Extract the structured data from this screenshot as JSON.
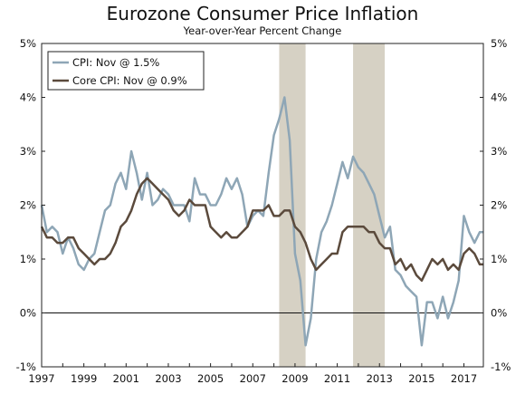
{
  "chart_data": {
    "type": "line",
    "title": "Eurozone Consumer Price Inflation",
    "subtitle": "Year-over-Year Percent Change",
    "xlim": [
      1997.0,
      2017.92
    ],
    "ylim": [
      -1,
      5
    ],
    "y_ticks": [
      -1,
      0,
      1,
      2,
      3,
      4,
      5
    ],
    "y_tick_labels": [
      "-1%",
      "0%",
      "1%",
      "2%",
      "3%",
      "4%",
      "5%"
    ],
    "x_ticks": [
      1997,
      1999,
      2001,
      2003,
      2005,
      2007,
      2009,
      2011,
      2013,
      2015,
      2017
    ],
    "x_tick_labels": [
      "1997",
      "1999",
      "2001",
      "2003",
      "2005",
      "2007",
      "2009",
      "2011",
      "2013",
      "2015",
      "2017"
    ],
    "recessions": [
      [
        2008.25,
        2009.5
      ],
      [
        2011.75,
        2013.25
      ]
    ],
    "recession_color": "#d6d1c4",
    "zero_line": true,
    "legend_position": "top-left",
    "series": [
      {
        "name": "CPI: Nov @ 1.5%",
        "color": "#8ea6b6",
        "points": [
          [
            1997.0,
            2.0
          ],
          [
            1997.25,
            1.5
          ],
          [
            1997.5,
            1.6
          ],
          [
            1997.75,
            1.5
          ],
          [
            1998.0,
            1.1
          ],
          [
            1998.25,
            1.4
          ],
          [
            1998.5,
            1.2
          ],
          [
            1998.75,
            0.9
          ],
          [
            1999.0,
            0.8
          ],
          [
            1999.25,
            1.0
          ],
          [
            1999.5,
            1.1
          ],
          [
            1999.75,
            1.5
          ],
          [
            2000.0,
            1.9
          ],
          [
            2000.25,
            2.0
          ],
          [
            2000.5,
            2.4
          ],
          [
            2000.75,
            2.6
          ],
          [
            2001.0,
            2.3
          ],
          [
            2001.25,
            3.0
          ],
          [
            2001.5,
            2.6
          ],
          [
            2001.75,
            2.1
          ],
          [
            2002.0,
            2.6
          ],
          [
            2002.25,
            2.0
          ],
          [
            2002.5,
            2.1
          ],
          [
            2002.75,
            2.3
          ],
          [
            2003.0,
            2.2
          ],
          [
            2003.25,
            2.0
          ],
          [
            2003.5,
            2.0
          ],
          [
            2003.75,
            2.0
          ],
          [
            2004.0,
            1.7
          ],
          [
            2004.25,
            2.5
          ],
          [
            2004.5,
            2.2
          ],
          [
            2004.75,
            2.2
          ],
          [
            2005.0,
            2.0
          ],
          [
            2005.25,
            2.0
          ],
          [
            2005.5,
            2.2
          ],
          [
            2005.75,
            2.5
          ],
          [
            2006.0,
            2.3
          ],
          [
            2006.25,
            2.5
          ],
          [
            2006.5,
            2.2
          ],
          [
            2006.75,
            1.6
          ],
          [
            2007.0,
            1.8
          ],
          [
            2007.25,
            1.9
          ],
          [
            2007.5,
            1.8
          ],
          [
            2007.75,
            2.6
          ],
          [
            2008.0,
            3.3
          ],
          [
            2008.25,
            3.6
          ],
          [
            2008.5,
            4.0
          ],
          [
            2008.75,
            3.2
          ],
          [
            2009.0,
            1.1
          ],
          [
            2009.25,
            0.6
          ],
          [
            2009.5,
            -0.6
          ],
          [
            2009.75,
            -0.1
          ],
          [
            2010.0,
            1.0
          ],
          [
            2010.25,
            1.5
          ],
          [
            2010.5,
            1.7
          ],
          [
            2010.75,
            2.0
          ],
          [
            2011.0,
            2.4
          ],
          [
            2011.25,
            2.8
          ],
          [
            2011.5,
            2.5
          ],
          [
            2011.75,
            2.9
          ],
          [
            2012.0,
            2.7
          ],
          [
            2012.25,
            2.6
          ],
          [
            2012.5,
            2.4
          ],
          [
            2012.75,
            2.2
          ],
          [
            2013.0,
            1.8
          ],
          [
            2013.25,
            1.4
          ],
          [
            2013.5,
            1.6
          ],
          [
            2013.75,
            0.8
          ],
          [
            2014.0,
            0.7
          ],
          [
            2014.25,
            0.5
          ],
          [
            2014.5,
            0.4
          ],
          [
            2014.75,
            0.3
          ],
          [
            2015.0,
            -0.6
          ],
          [
            2015.25,
            0.2
          ],
          [
            2015.5,
            0.2
          ],
          [
            2015.75,
            -0.1
          ],
          [
            2016.0,
            0.3
          ],
          [
            2016.25,
            -0.1
          ],
          [
            2016.5,
            0.2
          ],
          [
            2016.75,
            0.6
          ],
          [
            2017.0,
            1.8
          ],
          [
            2017.25,
            1.5
          ],
          [
            2017.5,
            1.3
          ],
          [
            2017.75,
            1.5
          ],
          [
            2017.92,
            1.5
          ]
        ]
      },
      {
        "name": "Core CPI: Nov @ 0.9%",
        "color": "#5b4a3c",
        "points": [
          [
            1997.0,
            1.6
          ],
          [
            1997.25,
            1.4
          ],
          [
            1997.5,
            1.4
          ],
          [
            1997.75,
            1.3
          ],
          [
            1998.0,
            1.3
          ],
          [
            1998.25,
            1.4
          ],
          [
            1998.5,
            1.4
          ],
          [
            1998.75,
            1.2
          ],
          [
            1999.0,
            1.1
          ],
          [
            1999.25,
            1.0
          ],
          [
            1999.5,
            0.9
          ],
          [
            1999.75,
            1.0
          ],
          [
            2000.0,
            1.0
          ],
          [
            2000.25,
            1.1
          ],
          [
            2000.5,
            1.3
          ],
          [
            2000.75,
            1.6
          ],
          [
            2001.0,
            1.7
          ],
          [
            2001.25,
            1.9
          ],
          [
            2001.5,
            2.2
          ],
          [
            2001.75,
            2.4
          ],
          [
            2002.0,
            2.5
          ],
          [
            2002.25,
            2.4
          ],
          [
            2002.5,
            2.3
          ],
          [
            2002.75,
            2.2
          ],
          [
            2003.0,
            2.1
          ],
          [
            2003.25,
            1.9
          ],
          [
            2003.5,
            1.8
          ],
          [
            2003.75,
            1.9
          ],
          [
            2004.0,
            2.1
          ],
          [
            2004.25,
            2.0
          ],
          [
            2004.5,
            2.0
          ],
          [
            2004.75,
            2.0
          ],
          [
            2005.0,
            1.6
          ],
          [
            2005.25,
            1.5
          ],
          [
            2005.5,
            1.4
          ],
          [
            2005.75,
            1.5
          ],
          [
            2006.0,
            1.4
          ],
          [
            2006.25,
            1.4
          ],
          [
            2006.5,
            1.5
          ],
          [
            2006.75,
            1.6
          ],
          [
            2007.0,
            1.9
          ],
          [
            2007.25,
            1.9
          ],
          [
            2007.5,
            1.9
          ],
          [
            2007.75,
            2.0
          ],
          [
            2008.0,
            1.8
          ],
          [
            2008.25,
            1.8
          ],
          [
            2008.5,
            1.9
          ],
          [
            2008.75,
            1.9
          ],
          [
            2009.0,
            1.6
          ],
          [
            2009.25,
            1.5
          ],
          [
            2009.5,
            1.3
          ],
          [
            2009.75,
            1.0
          ],
          [
            2010.0,
            0.8
          ],
          [
            2010.25,
            0.9
          ],
          [
            2010.5,
            1.0
          ],
          [
            2010.75,
            1.1
          ],
          [
            2011.0,
            1.1
          ],
          [
            2011.25,
            1.5
          ],
          [
            2011.5,
            1.6
          ],
          [
            2011.75,
            1.6
          ],
          [
            2012.0,
            1.6
          ],
          [
            2012.25,
            1.6
          ],
          [
            2012.5,
            1.5
          ],
          [
            2012.75,
            1.5
          ],
          [
            2013.0,
            1.3
          ],
          [
            2013.25,
            1.2
          ],
          [
            2013.5,
            1.2
          ],
          [
            2013.75,
            0.9
          ],
          [
            2014.0,
            1.0
          ],
          [
            2014.25,
            0.8
          ],
          [
            2014.5,
            0.9
          ],
          [
            2014.75,
            0.7
          ],
          [
            2015.0,
            0.6
          ],
          [
            2015.25,
            0.8
          ],
          [
            2015.5,
            1.0
          ],
          [
            2015.75,
            0.9
          ],
          [
            2016.0,
            1.0
          ],
          [
            2016.25,
            0.8
          ],
          [
            2016.5,
            0.9
          ],
          [
            2016.75,
            0.8
          ],
          [
            2017.0,
            1.1
          ],
          [
            2017.25,
            1.2
          ],
          [
            2017.5,
            1.1
          ],
          [
            2017.75,
            0.9
          ],
          [
            2017.92,
            0.9
          ]
        ]
      }
    ]
  }
}
